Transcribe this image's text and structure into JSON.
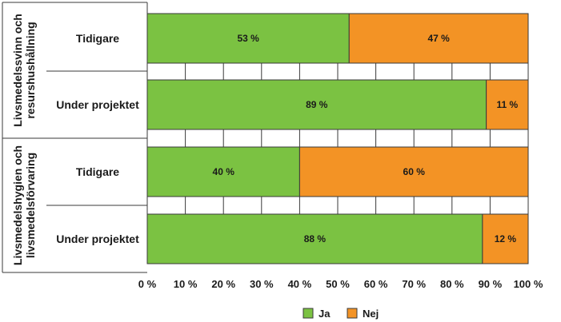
{
  "chart_data": {
    "type": "bar",
    "orientation": "horizontal",
    "stacked": true,
    "groups": [
      {
        "label": "Livsmedelssvinn och resurshushållning",
        "lines": [
          "Livsmedelssvinn och",
          "resurshushållning"
        ],
        "categories": [
          "Tidigare",
          "Under projektet"
        ]
      },
      {
        "label": "Livsmedelshygien och livsmedelsförvaring",
        "lines": [
          "Livsmedelshygien och",
          "livsmedelsförvaring"
        ],
        "categories": [
          "Tidigare",
          "Under projektet"
        ]
      }
    ],
    "categories": [
      "Tidigare",
      "Under projektet",
      "Tidigare",
      "Under projektet"
    ],
    "series": [
      {
        "name": "Ja",
        "color": "#7bc242",
        "values": [
          53,
          89,
          40,
          88
        ],
        "labels": [
          "53 %",
          "89 %",
          "40 %",
          "88 %"
        ]
      },
      {
        "name": "Nej",
        "color": "#f39325",
        "values": [
          47,
          11,
          60,
          12
        ],
        "labels": [
          "47 %",
          "11 %",
          "60 %",
          "12 %"
        ]
      }
    ],
    "xlim": [
      0,
      100
    ],
    "xticks": [
      "0 %",
      "10 %",
      "20 %",
      "30 %",
      "40 %",
      "50 %",
      "60 %",
      "70 %",
      "80 %",
      "90 %",
      "100 %"
    ],
    "grid": true,
    "legend": "bottom-center"
  }
}
